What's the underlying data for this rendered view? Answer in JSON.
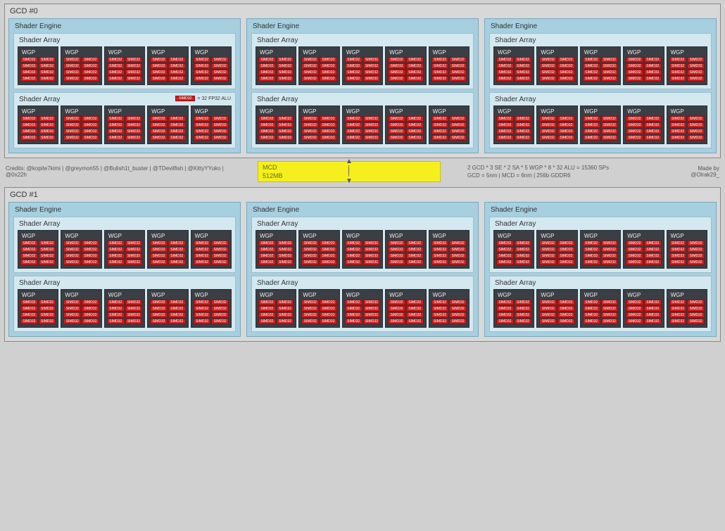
{
  "colors": {
    "page_bg": "#d0d0d0",
    "gcd_bg": "#d8d8d8",
    "gcd_border": "#888888",
    "se_bg": "#a6cfe0",
    "se_border": "#7aa8bc",
    "sa_bg": "#d4e8f0",
    "sa_border": "#9fbecb",
    "wgp_bg": "#3a3f45",
    "wgp_border": "#2a2e33",
    "simd_bg": "#cc1f1f",
    "simd_border": "#8a0f0f",
    "mcd_bg": "#f5ef1d",
    "mcd_border": "#c9c400"
  },
  "layout": {
    "gcd_count": 2,
    "shader_engines_per_gcd": 3,
    "shader_arrays_per_se": 2,
    "wgp_per_sa": 5,
    "simd_per_wgp": 8,
    "simd_grid_cols": 2
  },
  "labels": {
    "gcd_prefix": "GCD #",
    "shader_engine": "Shader Engine",
    "shader_array": "Shader Array",
    "wgp": "WGP",
    "simd": "SIMD32",
    "legend_text": "= 32 FP32 ALU"
  },
  "mcd": {
    "line1": "MCD",
    "line2": "512MB"
  },
  "credits": "Credits: @kopite7kimi | @greymon55 | @Bulish1t_buster | @TDevilfish | @KittyYYuko | @0x22h",
  "spec": {
    "line1": "2 GCD * 3 SE * 2 SA * 5 WGP * 8 * 32 ALU = 15360 SPs",
    "line2": "GCD = 5nm | MCD = 6nm | 256b GDDR6"
  },
  "madeby": "Made by @Olrak29_"
}
